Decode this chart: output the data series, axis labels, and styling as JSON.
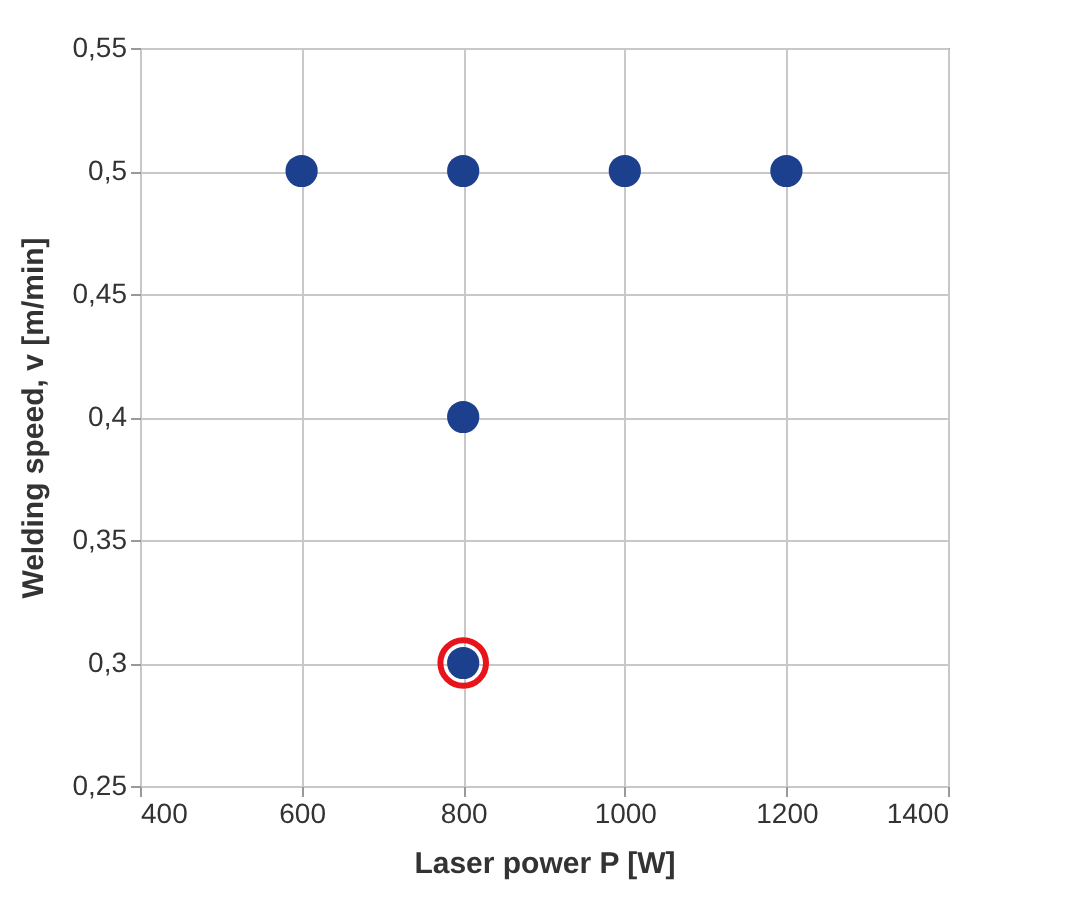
{
  "chart_data": {
    "type": "scatter",
    "xlabel": "Laser power P [W]",
    "ylabel": "Welding speed, v [m/min]",
    "series": [
      {
        "color": "#1c3f8e",
        "x": [
          600,
          800,
          1000,
          1200,
          800,
          800
        ],
        "values": [
          0.5,
          0.5,
          0.5,
          0.5,
          0.4,
          0.3
        ]
      },
      {
        "color": "#e8141b",
        "x": [
          800
        ],
        "values": [
          0.3
        ]
      }
    ],
    "xlim": [
      400,
      1400
    ],
    "xticks": [
      400,
      600,
      800,
      1000,
      1200,
      1400
    ],
    "ylim": [
      0.25,
      0.55
    ],
    "yticks": [
      {
        "value": 0.25,
        "label": "0,25"
      },
      {
        "value": 0.3,
        "label": "0,3"
      },
      {
        "value": 0.35,
        "label": "0,35"
      },
      {
        "value": 0.4,
        "label": "0,4"
      },
      {
        "value": 0.45,
        "label": "0,45"
      },
      {
        "value": 0.5,
        "label": "0,5"
      },
      {
        "value": 0.55,
        "label": "0,55"
      }
    ],
    "grid": true,
    "marker": "circle"
  }
}
